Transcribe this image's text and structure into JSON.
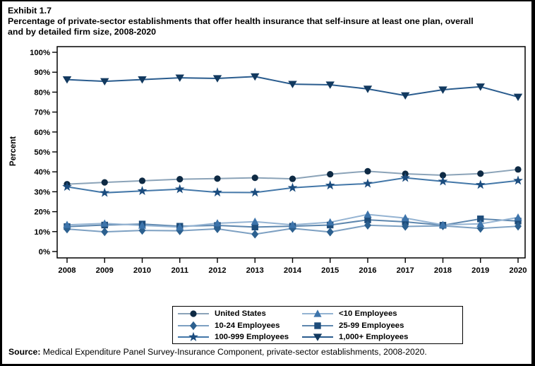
{
  "page": {
    "exhibit_label": "Exhibit 1.7",
    "title_line1": "Percentage of private-sector establishments that offer health insurance that self-insure at least one plan, overall",
    "title_line2": "and by detailed firm size, 2008-2020",
    "source_label": "Source:",
    "source_text": " Medical Expenditure Panel Survey-Insurance Component, private-sector establishments, 2008-2020."
  },
  "chart_data": {
    "type": "line",
    "title": "Percentage of private-sector establishments that offer health insurance that self-insure at least one plan, overall and by detailed firm size, 2008-2020",
    "xlabel": "",
    "ylabel": "Percent",
    "ylim": [
      0,
      100
    ],
    "ytick_step": 10,
    "ytick_suffix": "%",
    "grid": false,
    "legend_position": "bottom",
    "x": [
      2008,
      2009,
      2010,
      2011,
      2012,
      2013,
      2014,
      2015,
      2016,
      2017,
      2018,
      2019,
      2020
    ],
    "series": [
      {
        "name": "United States",
        "marker": "circle",
        "marker_color": "#0e2a44",
        "line_color": "#8ba3b8",
        "values": [
          33.8,
          34.7,
          35.5,
          36.3,
          36.6,
          37.0,
          36.5,
          38.8,
          40.3,
          39.0,
          38.3,
          39.1,
          41.2
        ]
      },
      {
        "name": "<10 Employees",
        "marker": "triangle-up",
        "marker_color": "#3d74ab",
        "line_color": "#94b3d2",
        "values": [
          13.4,
          14.1,
          13.1,
          12.3,
          14.2,
          15.0,
          13.4,
          14.7,
          18.6,
          16.8,
          13.4,
          13.9,
          17.1
        ]
      },
      {
        "name": "10-24 Employees",
        "marker": "diamond",
        "marker_color": "#2c608f",
        "line_color": "#7da0c2",
        "values": [
          11.3,
          9.9,
          10.6,
          10.4,
          11.4,
          8.7,
          11.6,
          9.8,
          13.2,
          12.6,
          12.9,
          11.6,
          12.7
        ]
      },
      {
        "name": "25-99 Employees",
        "marker": "square",
        "marker_color": "#1e4d7b",
        "line_color": "#5e87ae",
        "values": [
          12.5,
          13.3,
          13.8,
          12.7,
          13.1,
          12.3,
          12.7,
          13.3,
          15.9,
          14.9,
          13.2,
          16.4,
          15.3
        ]
      },
      {
        "name": "100-999 Employees",
        "marker": "star",
        "marker_color": "#1b4c7e",
        "line_color": "#4377a8",
        "values": [
          32.5,
          29.5,
          30.4,
          31.3,
          29.7,
          29.6,
          32.0,
          33.2,
          34.1,
          37.0,
          35.2,
          33.5,
          35.6
        ]
      },
      {
        "name": "1,000+ Employees",
        "marker": "triangle-down",
        "marker_color": "#12395f",
        "line_color": "#2a5c8e",
        "values": [
          86.3,
          85.4,
          86.3,
          87.2,
          86.9,
          87.8,
          84.0,
          83.7,
          81.6,
          78.3,
          81.2,
          82.7,
          77.6
        ]
      }
    ],
    "legend_order": [
      "United States",
      "<10 Employees",
      "10-24 Employees",
      "25-99 Employees",
      "100-999 Employees",
      "1,000+ Employees"
    ],
    "draw_order": [
      "1,000+ Employees",
      "United States",
      "100-999 Employees",
      "25-99 Employees",
      "10-24 Employees",
      "<10 Employees"
    ]
  }
}
